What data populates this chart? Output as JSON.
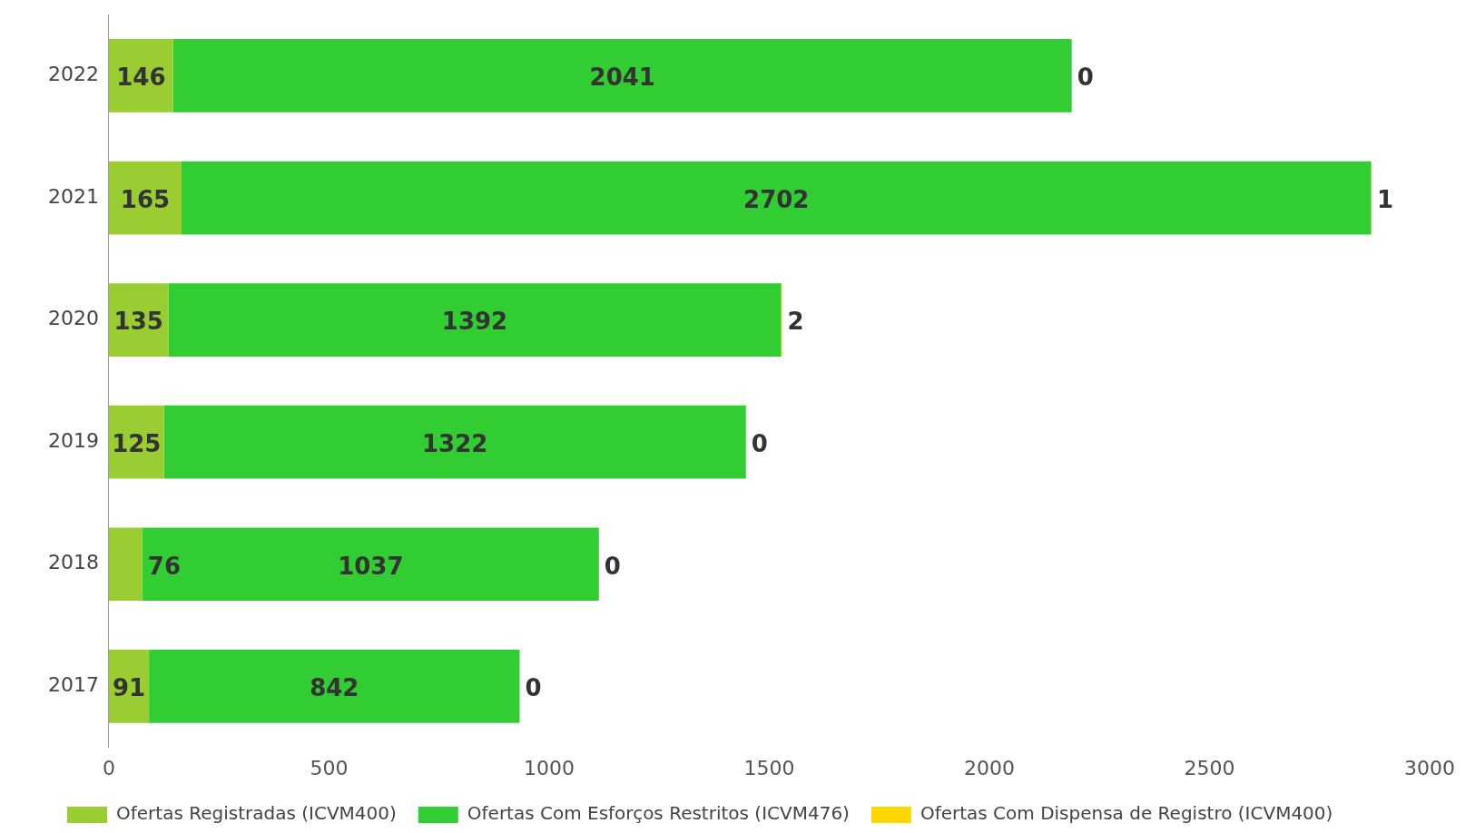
{
  "chart_data": {
    "type": "bar",
    "orientation": "horizontal",
    "stacked": true,
    "data_labels": true,
    "legend": "bottom",
    "grid": false,
    "categories": [
      "2022",
      "2021",
      "2020",
      "2019",
      "2018",
      "2017"
    ],
    "series": [
      {
        "name": "Ofertas Registradas (ICVM400)",
        "color": "#9acd32",
        "values": [
          146,
          165,
          135,
          125,
          76,
          91
        ]
      },
      {
        "name": "Ofertas Com Esforços Restritos (ICVM476)",
        "color": "#32cd32",
        "values": [
          2041,
          2702,
          1392,
          1322,
          1037,
          842
        ]
      },
      {
        "name": "Ofertas Com Dispensa de Registro (ICVM400)",
        "color": "#ffd700",
        "values": [
          0,
          1,
          2,
          0,
          0,
          0
        ]
      }
    ],
    "xlim": [
      0,
      3000
    ],
    "xticks": [
      0,
      500,
      1000,
      1500,
      2000,
      2500,
      3000
    ]
  }
}
